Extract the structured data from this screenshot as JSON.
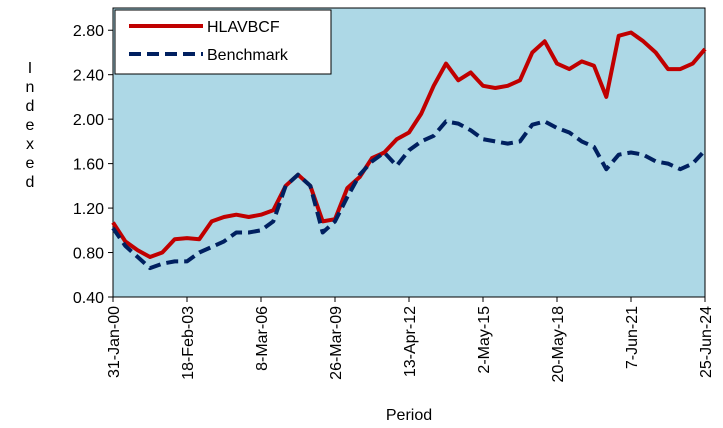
{
  "chart_data": {
    "type": "line",
    "x_label": "Period",
    "y_label": "Indexed",
    "categories": [
      "31-Jan-00",
      null,
      null,
      null,
      null,
      null,
      "18-Feb-03",
      null,
      null,
      null,
      null,
      null,
      "8-Mar-06",
      null,
      null,
      null,
      null,
      null,
      "26-Mar-09",
      null,
      null,
      null,
      null,
      null,
      "13-Apr-12",
      null,
      null,
      null,
      null,
      null,
      "2-May-15",
      null,
      null,
      null,
      null,
      null,
      "20-May-18",
      null,
      null,
      null,
      null,
      null,
      "7-Jun-21",
      null,
      null,
      null,
      null,
      null,
      "25-Jun-24"
    ],
    "series": [
      {
        "name": "HLAVBCF",
        "color": "#c00000",
        "dash": false,
        "values": [
          1.07,
          0.9,
          0.82,
          0.76,
          0.8,
          0.92,
          0.93,
          0.92,
          1.08,
          1.12,
          1.14,
          1.12,
          1.14,
          1.18,
          1.4,
          1.5,
          1.4,
          1.08,
          1.1,
          1.38,
          1.48,
          1.65,
          1.7,
          1.82,
          1.88,
          2.05,
          2.3,
          2.5,
          2.35,
          2.42,
          2.3,
          2.28,
          2.3,
          2.35,
          2.6,
          2.7,
          2.5,
          2.45,
          2.52,
          2.48,
          2.2,
          2.75,
          2.78,
          2.7,
          2.6,
          2.45,
          2.45,
          2.5,
          2.63
        ]
      },
      {
        "name": "Benchmark",
        "color": "#002060",
        "dash": true,
        "values": [
          1.02,
          0.86,
          0.76,
          0.66,
          0.7,
          0.72,
          0.72,
          0.8,
          0.85,
          0.9,
          0.98,
          0.98,
          1.0,
          1.08,
          1.4,
          1.5,
          1.4,
          0.98,
          1.08,
          1.3,
          1.5,
          1.62,
          1.7,
          1.58,
          1.72,
          1.8,
          1.85,
          1.98,
          1.96,
          1.9,
          1.82,
          1.8,
          1.78,
          1.8,
          1.95,
          1.98,
          1.92,
          1.88,
          1.8,
          1.75,
          1.55,
          1.68,
          1.7,
          1.68,
          1.62,
          1.6,
          1.55,
          1.6,
          1.72
        ]
      }
    ],
    "ylim": [
      0.4,
      3.0
    ],
    "yticks": [
      {
        "value": 0.4,
        "label": "0.40"
      },
      {
        "value": 0.8,
        "label": "0.80"
      },
      {
        "value": 1.2,
        "label": "1.20"
      },
      {
        "value": 1.6,
        "label": "1.60"
      },
      {
        "value": 2.0,
        "label": "2.00"
      },
      {
        "value": 2.4,
        "label": "2.40"
      },
      {
        "value": 2.8,
        "label": "2.80"
      }
    ],
    "plot_background": "#add8e6",
    "legend": "top-left"
  }
}
